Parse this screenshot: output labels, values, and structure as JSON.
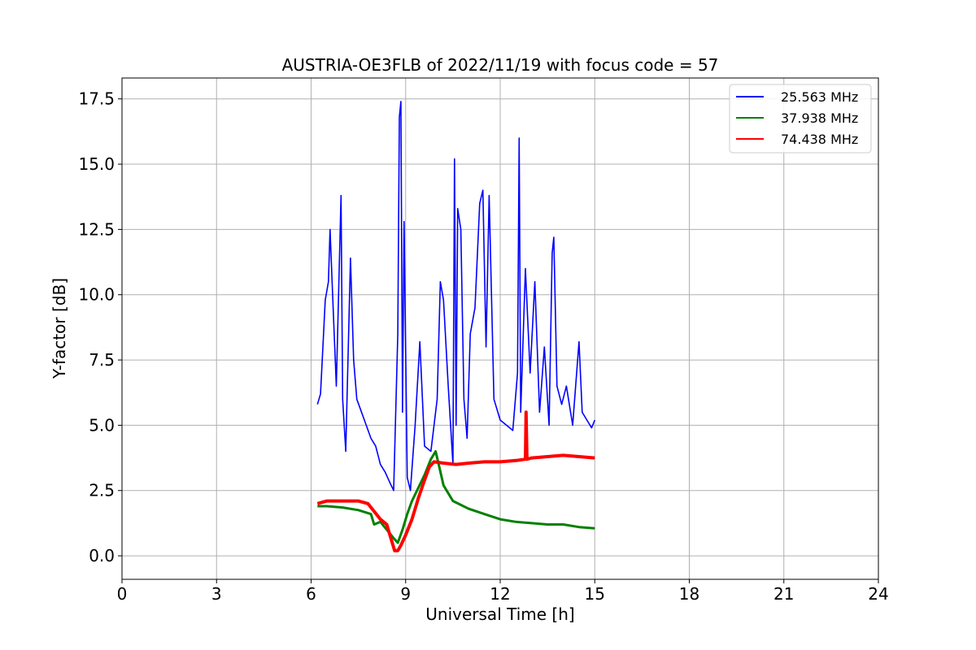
{
  "chart_data": {
    "type": "line",
    "title": "AUSTRIA-OE3FLB of 2022/11/19 with focus code = 57",
    "xlabel": "Universal Time [h]",
    "ylabel": "Y-factor [dB]",
    "xlim": [
      0,
      24
    ],
    "ylim": [
      -0.9,
      18.3
    ],
    "xticks": [
      0,
      3,
      6,
      9,
      12,
      15,
      18,
      21,
      24
    ],
    "xtick_labels": [
      "0",
      "3",
      "6",
      "9",
      "12",
      "15",
      "18",
      "21",
      "24"
    ],
    "yticks": [
      0,
      2.5,
      5,
      7.5,
      10,
      12.5,
      15,
      17.5
    ],
    "ytick_labels": [
      "0.0",
      "2.5",
      "5.0",
      "7.5",
      "10.0",
      "12.5",
      "15.0",
      "17.5"
    ],
    "grid": true,
    "legend_position": "top-right",
    "series": [
      {
        "name": "25.563 MHz",
        "color": "#0000ff",
        "x": [
          6.2,
          6.3,
          6.45,
          6.55,
          6.6,
          6.7,
          6.8,
          6.95,
          7.0,
          7.1,
          7.25,
          7.35,
          7.45,
          7.6,
          7.75,
          7.9,
          8.05,
          8.2,
          8.35,
          8.5,
          8.62,
          8.75,
          8.8,
          8.85,
          8.9,
          8.95,
          9.05,
          9.15,
          9.3,
          9.45,
          9.6,
          9.8,
          10.0,
          10.1,
          10.2,
          10.35,
          10.5,
          10.55,
          10.6,
          10.65,
          10.75,
          10.85,
          10.95,
          11.05,
          11.2,
          11.35,
          11.45,
          11.55,
          11.65,
          11.8,
          12.0,
          12.2,
          12.4,
          12.55,
          12.6,
          12.65,
          12.8,
          12.95,
          13.1,
          13.25,
          13.4,
          13.55,
          13.65,
          13.7,
          13.8,
          13.95,
          14.1,
          14.3,
          14.5,
          14.6,
          14.75,
          14.9,
          15.0
        ],
        "y": [
          5.8,
          6.2,
          9.8,
          10.5,
          12.5,
          9.5,
          6.5,
          13.8,
          6.0,
          4.0,
          11.4,
          7.5,
          6.0,
          5.5,
          5.0,
          4.5,
          4.2,
          3.5,
          3.2,
          2.8,
          2.5,
          8.5,
          16.8,
          17.4,
          5.5,
          12.8,
          3.0,
          2.5,
          5.0,
          8.2,
          4.2,
          4.0,
          6.0,
          10.5,
          9.8,
          6.5,
          3.5,
          15.2,
          5.0,
          13.3,
          12.5,
          6.0,
          4.5,
          8.5,
          9.5,
          13.5,
          14.0,
          8.0,
          13.8,
          6.0,
          5.2,
          5.0,
          4.8,
          7.0,
          16.0,
          5.5,
          11.0,
          7.0,
          10.5,
          5.5,
          8.0,
          5.0,
          11.6,
          12.2,
          6.5,
          5.8,
          6.5,
          5.0,
          8.2,
          5.5,
          5.2,
          4.9,
          5.2
        ]
      },
      {
        "name": "37.938 MHz",
        "color": "#008000",
        "x": [
          6.2,
          6.5,
          7.0,
          7.5,
          7.9,
          8.0,
          8.2,
          8.4,
          8.6,
          8.75,
          8.9,
          9.05,
          9.2,
          9.4,
          9.6,
          9.8,
          9.95,
          10.05,
          10.2,
          10.5,
          11.0,
          11.5,
          12.0,
          12.5,
          13.0,
          13.5,
          14.0,
          14.5,
          15.0
        ],
        "y": [
          1.9,
          1.9,
          1.85,
          1.75,
          1.6,
          1.2,
          1.3,
          1.0,
          0.7,
          0.5,
          1.0,
          1.6,
          2.1,
          2.6,
          3.1,
          3.7,
          4.0,
          3.5,
          2.7,
          2.1,
          1.8,
          1.6,
          1.4,
          1.3,
          1.25,
          1.2,
          1.2,
          1.1,
          1.05
        ]
      },
      {
        "name": "74.438 MHz",
        "color": "#ff0000",
        "x": [
          6.2,
          6.5,
          7.0,
          7.5,
          7.8,
          8.0,
          8.2,
          8.4,
          8.55,
          8.65,
          8.75,
          8.85,
          9.0,
          9.2,
          9.4,
          9.6,
          9.75,
          9.9,
          10.2,
          10.6,
          11.0,
          11.5,
          12.0,
          12.5,
          12.8,
          12.82,
          12.85,
          13.0,
          13.5,
          14.0,
          14.5,
          15.0
        ],
        "y": [
          2.0,
          2.1,
          2.1,
          2.1,
          2.0,
          1.7,
          1.4,
          1.2,
          0.6,
          0.2,
          0.2,
          0.4,
          0.8,
          1.4,
          2.2,
          2.9,
          3.4,
          3.6,
          3.55,
          3.5,
          3.55,
          3.6,
          3.6,
          3.65,
          3.7,
          5.5,
          3.7,
          3.75,
          3.8,
          3.85,
          3.8,
          3.75
        ]
      }
    ]
  }
}
